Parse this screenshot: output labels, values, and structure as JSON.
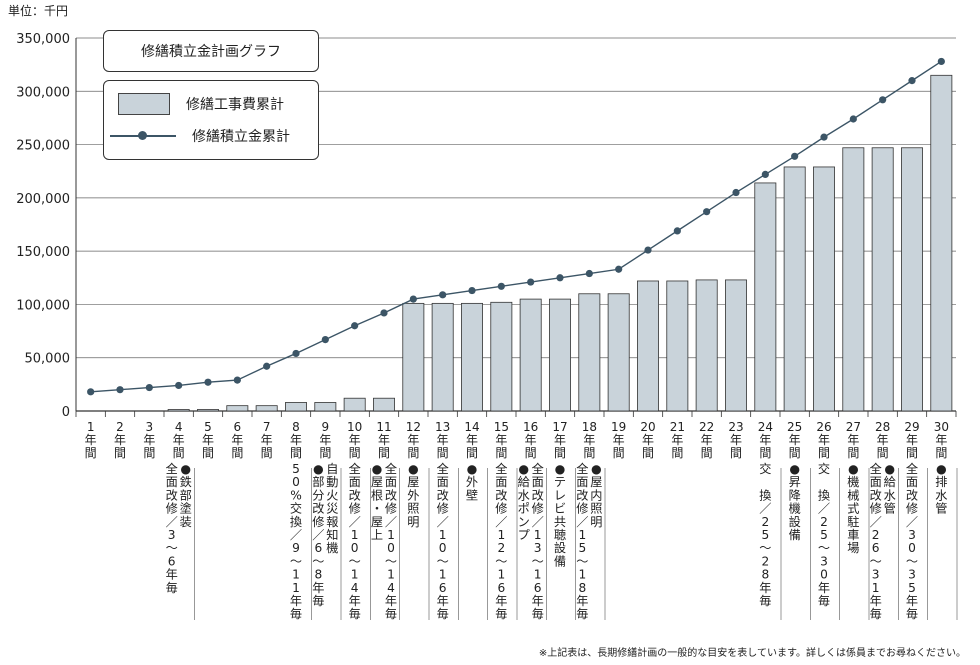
{
  "unit_label": "単位：千円",
  "footnote": "※上記表は、長期修繕計画の一般的な目安を表しています。詳しくは係員までお尋ねください。",
  "chart_data": {
    "type": "bar",
    "title": "修繕積立金計画グラフ",
    "ylim": [
      0,
      350000
    ],
    "yticks": [
      "0",
      "50,000",
      "100,000",
      "150,000",
      "200,000",
      "250,000",
      "300,000",
      "350,000"
    ],
    "ytick_values": [
      0,
      50000,
      100000,
      150000,
      200000,
      250000,
      300000,
      350000
    ],
    "grid": "horizontal",
    "categories": [
      "1\n年\n間",
      "2\n年\n間",
      "3\n年\n間",
      "4\n年\n間",
      "5\n年\n間",
      "6\n年\n間",
      "7\n年\n間",
      "8\n年\n間",
      "9\n年\n間",
      "10\n年\n間",
      "11\n年\n間",
      "12\n年\n間",
      "13\n年\n間",
      "14\n年\n間",
      "15\n年\n間",
      "16\n年\n間",
      "17\n年\n間",
      "18\n年\n間",
      "19\n年\n間",
      "20\n年\n間",
      "21\n年\n間",
      "22\n年\n間",
      "23\n年\n間",
      "24\n年\n間",
      "25\n年\n間",
      "26\n年\n間",
      "27\n年\n間",
      "28\n年\n間",
      "29\n年\n間",
      "30\n年\n間"
    ],
    "series": [
      {
        "name": "修繕工事費累計",
        "kind": "bar",
        "color": "#c9d3da",
        "values": [
          0,
          0,
          0,
          1000,
          1000,
          5000,
          5000,
          8000,
          8000,
          12000,
          12000,
          101000,
          101000,
          101000,
          102000,
          105000,
          105000,
          110000,
          110000,
          122000,
          122000,
          123000,
          123000,
          214000,
          229000,
          229000,
          247000,
          247000,
          247000,
          315000
        ]
      },
      {
        "name": "修繕積立金累計",
        "kind": "line",
        "color": "#3c5566",
        "values": [
          18000,
          20000,
          22000,
          24000,
          27000,
          29000,
          42000,
          54000,
          67000,
          80000,
          92000,
          105000,
          109000,
          113000,
          117000,
          121000,
          125000,
          129000,
          133000,
          151000,
          169000,
          187000,
          205000,
          222000,
          239000,
          257000,
          274000,
          292000,
          310000,
          328000
        ]
      }
    ],
    "annotations": [
      {
        "col": 4,
        "text": "全面改修／3〜6年毎"
      },
      {
        "col": 4,
        "text": "●鉄部塗装"
      },
      {
        "col": 8,
        "text": "50%交換／9〜11年毎"
      },
      {
        "col": 9,
        "text": "●部分改修／6〜8年毎"
      },
      {
        "col": 9,
        "text": "自動火災報知機"
      },
      {
        "col": 10,
        "text": "全面改修／10〜14年毎"
      },
      {
        "col": 11,
        "text": "●屋根・屋上"
      },
      {
        "col": 11,
        "text": "全面改修／10〜14年毎"
      },
      {
        "col": 12,
        "text": "●屋外照明"
      },
      {
        "col": 13,
        "text": "全面改修／10〜16年毎"
      },
      {
        "col": 14,
        "text": "●外壁"
      },
      {
        "col": 15,
        "text": "全面改修／12〜16年毎"
      },
      {
        "col": 16,
        "text": "●給水ポンプ"
      },
      {
        "col": 16,
        "text": "全面改修／13〜16年毎"
      },
      {
        "col": 17,
        "text": "●テレビ共聴設備"
      },
      {
        "col": 18,
        "text": "全面改修／15〜18年毎"
      },
      {
        "col": 18,
        "text": "●屋内照明"
      },
      {
        "col": 24,
        "text": "交　換／25〜28年毎"
      },
      {
        "col": 25,
        "text": "●昇降機設備"
      },
      {
        "col": 26,
        "text": "交　換／25〜30年毎"
      },
      {
        "col": 27,
        "text": "●機械式駐車場"
      },
      {
        "col": 28,
        "text": "全面改修／26〜31年毎"
      },
      {
        "col": 28,
        "text": "●給水管"
      },
      {
        "col": 29,
        "text": "全面改修／30〜35年毎"
      },
      {
        "col": 30,
        "text": "●排水管"
      }
    ]
  }
}
